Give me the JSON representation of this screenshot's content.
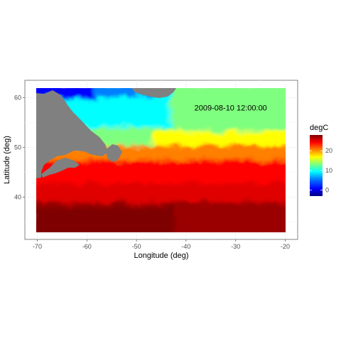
{
  "chart_data": {
    "type": "heatmap",
    "title": "",
    "xlabel": "Longitude (deg)",
    "ylabel": "Latitude (deg)",
    "xlim": [
      -72.5,
      -17.5
    ],
    "ylim": [
      31.5,
      63.5
    ],
    "data_extent": {
      "lon": [
        -70,
        -20
      ],
      "lat": [
        33,
        62
      ]
    },
    "x_ticks": [
      -70,
      -60,
      -50,
      -40,
      -30,
      -20
    ],
    "y_ticks": [
      40,
      50,
      60
    ],
    "annotation": "2009-08-10 12:00:00",
    "annotation_position": {
      "lon": -31,
      "lat": 58
    },
    "grid": true,
    "land_color": "#808080",
    "legend": {
      "title": "degC",
      "ticks": [
        0,
        10,
        20
      ],
      "range": [
        -3,
        28
      ],
      "palette": [
        "#00007F",
        "#0000FF",
        "#007FFF",
        "#00FFFF",
        "#7FFF7F",
        "#FFFF00",
        "#FF7F00",
        "#FF0000",
        "#7F0000"
      ],
      "placement": "right"
    },
    "sst_samples": [
      {
        "lon": -68,
        "lat": 61,
        "value": 2
      },
      {
        "lon": -60,
        "lat": 59,
        "value": 6
      },
      {
        "lon": -50,
        "lat": 58,
        "value": 9
      },
      {
        "lon": -40,
        "lat": 60,
        "value": 8
      },
      {
        "lon": -25,
        "lat": 60,
        "value": 13
      },
      {
        "lon": -45,
        "lat": 52,
        "value": 14
      },
      {
        "lon": -30,
        "lat": 50,
        "value": 19
      },
      {
        "lon": -40,
        "lat": 45,
        "value": 23
      },
      {
        "lon": -60,
        "lat": 40,
        "value": 25
      },
      {
        "lon": -30,
        "lat": 38,
        "value": 26
      },
      {
        "lon": -60,
        "lat": 35,
        "value": 28
      },
      {
        "lon": -25,
        "lat": 35,
        "value": 27
      }
    ]
  }
}
